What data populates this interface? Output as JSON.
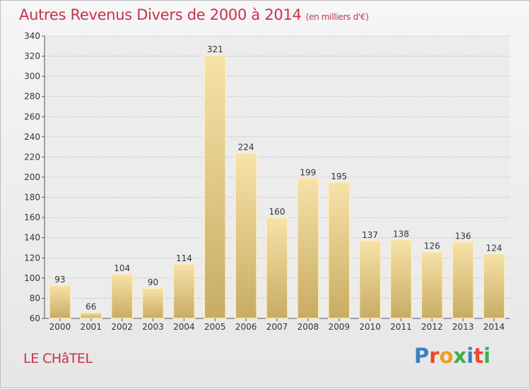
{
  "title": "Autres Revenus Divers de 2000 à 2014",
  "title_unit": "(en milliers d'€)",
  "city": "LE CHâTEL",
  "logo_text": "Proxiti",
  "logo_colors": [
    "#3d7fc4",
    "#e8492e",
    "#f29c1f",
    "#3fae49",
    "#3d7fc4",
    "#e8492e",
    "#3fae49"
  ],
  "colors": {
    "title": "#c8324b",
    "bar_light": "#f7e2a8",
    "bar_dark": "#c8ac63"
  },
  "chart_data": {
    "type": "bar",
    "categories": [
      "2000",
      "2001",
      "2002",
      "2003",
      "2004",
      "2005",
      "2006",
      "2007",
      "2008",
      "2009",
      "2010",
      "2011",
      "2012",
      "2013",
      "2014"
    ],
    "values": [
      93,
      66,
      104,
      90,
      114,
      321,
      224,
      160,
      199,
      195,
      137,
      138,
      126,
      136,
      124
    ],
    "ylim": [
      60,
      340
    ],
    "yticks": [
      60,
      80,
      100,
      120,
      140,
      160,
      180,
      200,
      220,
      240,
      260,
      280,
      300,
      320,
      340
    ],
    "grid": true
  }
}
